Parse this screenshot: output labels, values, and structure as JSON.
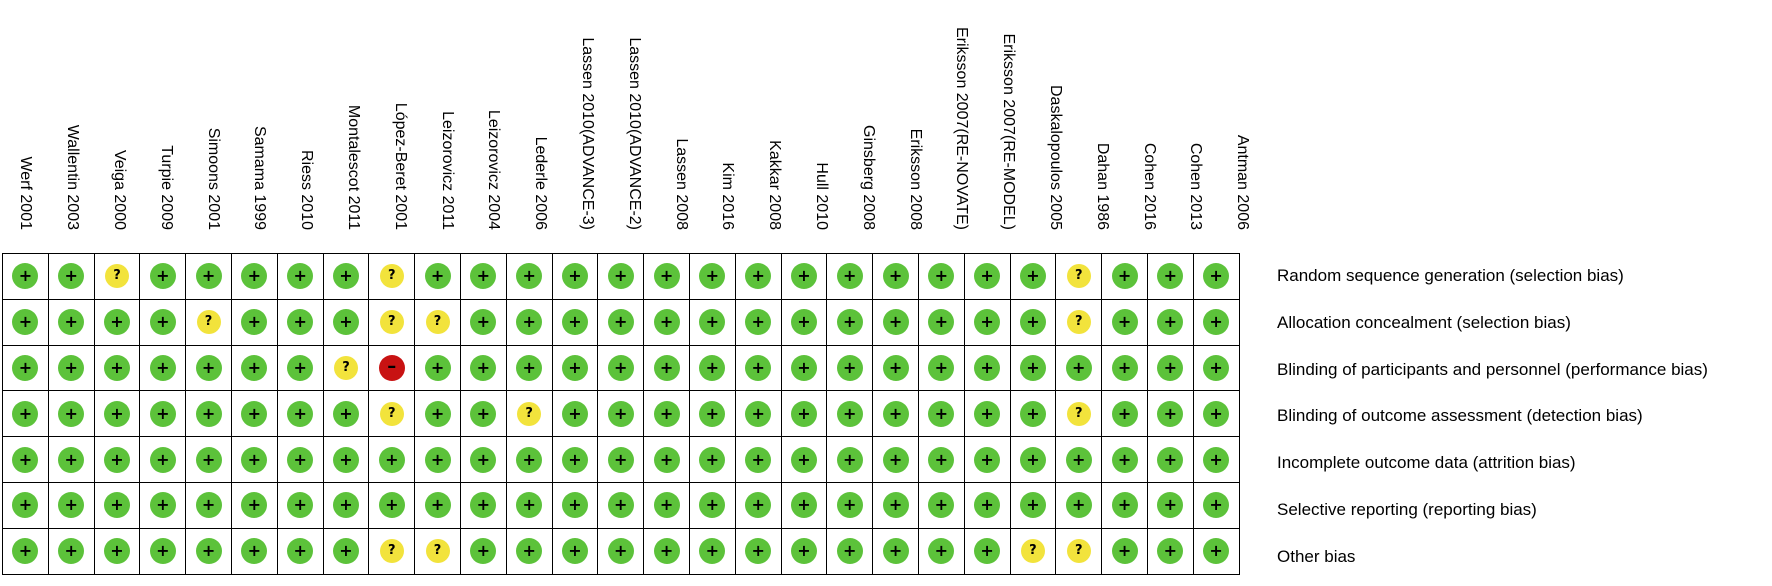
{
  "studies": [
    "Werf 2001",
    "Wallentin 2003",
    "Veiga 2000",
    "Turpie 2009",
    "Simoons 2001",
    "Samama 1999",
    "Riess 2010",
    "Montalescot 2011",
    "López-Beret 2001",
    "Leizorovicz 2011",
    "Leizorovicz 2004",
    "Lederle 2006",
    "Lassen 2010(ADVANCE-3)",
    "Lassen 2010(ADVANCE-2)",
    "Lassen 2008",
    "Kim 2016",
    "Kakkar 2008",
    "Hull 2010",
    "Ginsberg 2008",
    "Eriksson 2008",
    "Eriksson 2007(RE-NOVATE)",
    "Eriksson 2007(RE-MODEL)",
    "Daskalopoulos 2005",
    "Dahan 1986",
    "Cohen 2016",
    "Cohen 2013",
    "Antman 2006"
  ],
  "domains": [
    "Random sequence generation (selection bias)",
    "Allocation concealment (selection bias)",
    "Blinding of participants and personnel (performance bias)",
    "Blinding of outcome assessment (detection bias)",
    "Incomplete outcome data (attrition bias)",
    "Selective reporting (reporting bias)",
    "Other bias"
  ],
  "judgements": [
    [
      "+",
      "+",
      "?",
      "+",
      "+",
      "+",
      "+",
      "+",
      "?",
      "+",
      "+",
      "+",
      "+",
      "+",
      "+",
      "+",
      "+",
      "+",
      "+",
      "+",
      "+",
      "+",
      "+",
      "?",
      "+",
      "+",
      "+"
    ],
    [
      "+",
      "+",
      "+",
      "+",
      "?",
      "+",
      "+",
      "+",
      "?",
      "?",
      "+",
      "+",
      "+",
      "+",
      "+",
      "+",
      "+",
      "+",
      "+",
      "+",
      "+",
      "+",
      "+",
      "?",
      "+",
      "+",
      "+"
    ],
    [
      "+",
      "+",
      "+",
      "+",
      "+",
      "+",
      "+",
      "?",
      "-",
      "+",
      "+",
      "+",
      "+",
      "+",
      "+",
      "+",
      "+",
      "+",
      "+",
      "+",
      "+",
      "+",
      "+",
      "+",
      "+",
      "+",
      "+"
    ],
    [
      "+",
      "+",
      "+",
      "+",
      "+",
      "+",
      "+",
      "+",
      "?",
      "+",
      "+",
      "?",
      "+",
      "+",
      "+",
      "+",
      "+",
      "+",
      "+",
      "+",
      "+",
      "+",
      "+",
      "?",
      "+",
      "+",
      "+"
    ],
    [
      "+",
      "+",
      "+",
      "+",
      "+",
      "+",
      "+",
      "+",
      "+",
      "+",
      "+",
      "+",
      "+",
      "+",
      "+",
      "+",
      "+",
      "+",
      "+",
      "+",
      "+",
      "+",
      "+",
      "+",
      "+",
      "+",
      "+"
    ],
    [
      "+",
      "+",
      "+",
      "+",
      "+",
      "+",
      "+",
      "+",
      "+",
      "+",
      "+",
      "+",
      "+",
      "+",
      "+",
      "+",
      "+",
      "+",
      "+",
      "+",
      "+",
      "+",
      "+",
      "+",
      "+",
      "+",
      "+"
    ],
    [
      "+",
      "+",
      "+",
      "+",
      "+",
      "+",
      "+",
      "+",
      "?",
      "?",
      "+",
      "+",
      "+",
      "+",
      "+",
      "+",
      "+",
      "+",
      "+",
      "+",
      "+",
      "+",
      "?",
      "?",
      "+",
      "+",
      "+"
    ]
  ],
  "colors": {
    "low": "#5cc23a",
    "unclear": "#f2e33c",
    "high": "#c81212",
    "grid": "#000000"
  }
}
